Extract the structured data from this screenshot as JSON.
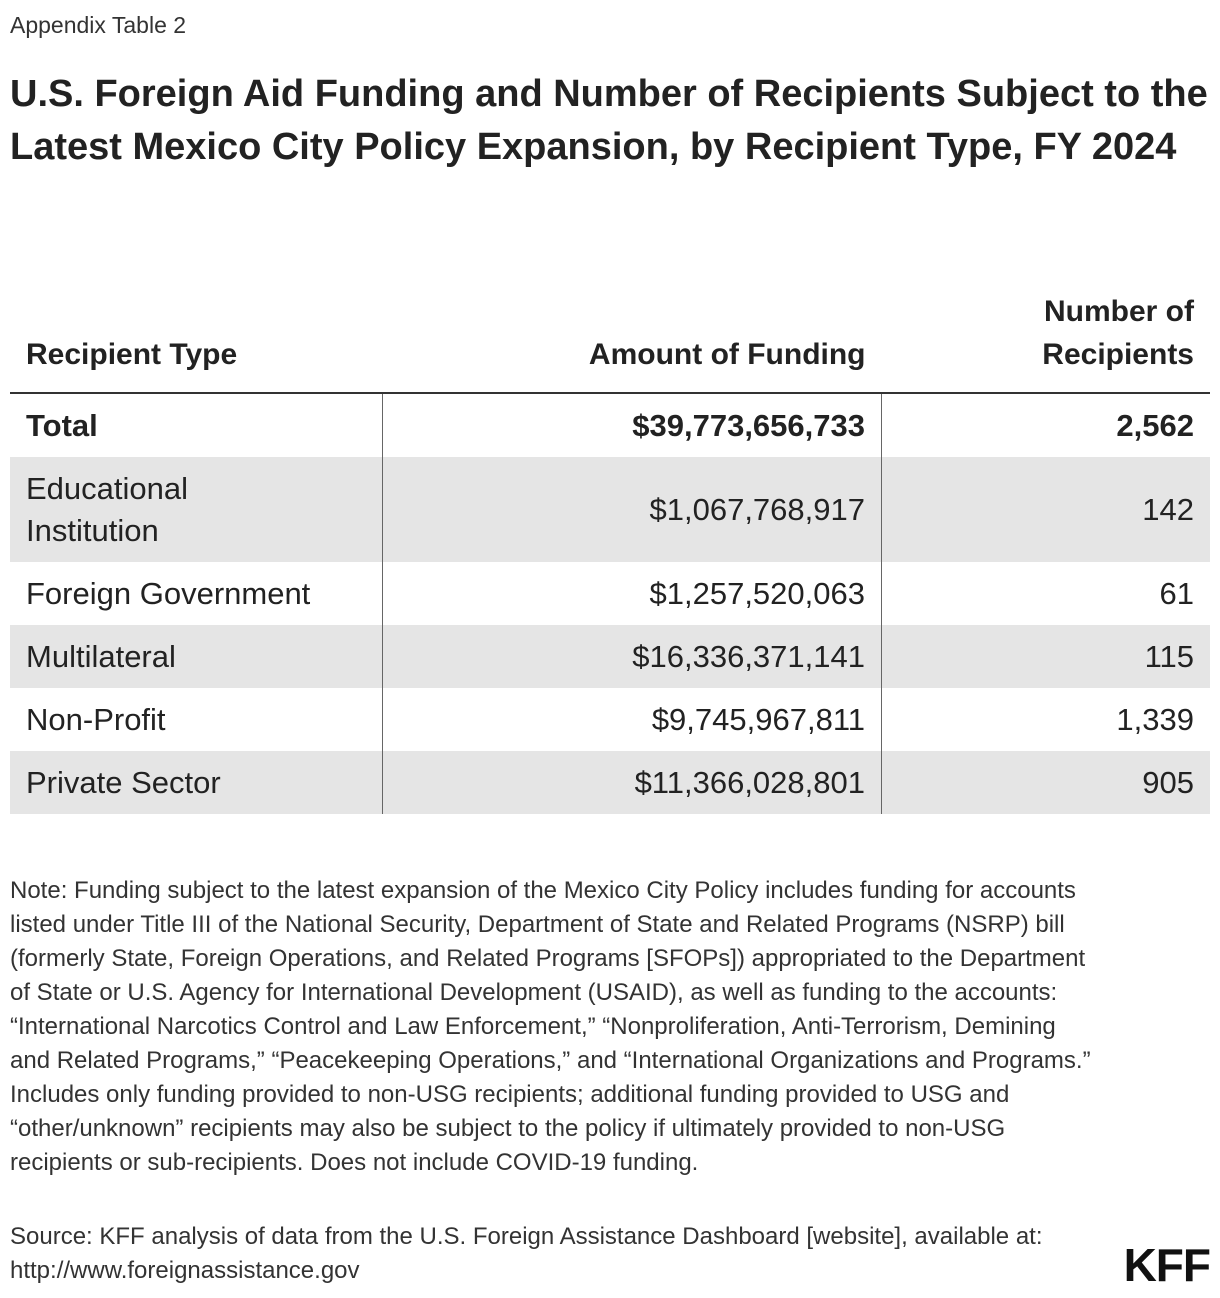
{
  "header": {
    "kicker": "Appendix Table 2",
    "title": "U.S. Foreign Aid Funding and Number of Recipients Subject to the Latest Mexico City Policy Expansion, by Recipient Type, FY 2024"
  },
  "table": {
    "columns": {
      "type": "Recipient Type",
      "funding": "Amount of Funding",
      "recipients_line1": "Number of",
      "recipients_line2": "Recipients"
    },
    "rows": [
      {
        "type": "Total",
        "funding": "$39,773,656,733",
        "recipients": "2,562"
      },
      {
        "type_line1": "Educational",
        "type_line2": "Institution",
        "funding": "$1,067,768,917",
        "recipients": "142"
      },
      {
        "type": "Foreign Government",
        "funding": "$1,257,520,063",
        "recipients": "61"
      },
      {
        "type": "Multilateral",
        "funding": "$16,336,371,141",
        "recipients": "115"
      },
      {
        "type": "Non-Profit",
        "funding": "$9,745,967,811",
        "recipients": "1,339"
      },
      {
        "type": "Private Sector",
        "funding": "$11,366,028,801",
        "recipients": "905"
      }
    ]
  },
  "footer": {
    "note": "Note: Funding subject to the latest expansion of the Mexico City Policy includes funding for accounts listed under Title III of the National Security, Department of State and Related Programs (NSRP) bill (formerly State, Foreign Operations, and Related Programs [SFOPs]) appropriated to the Department of State or U.S. Agency for International Development (USAID), as well as funding to the accounts: “International Narcotics Control and Law Enforcement,” “Nonproliferation, Anti-Terrorism, Demining and Related Programs,” “Peacekeeping Operations,” and “International Organizations and Programs.” Includes only funding provided to non-USG recipients; additional funding provided to USG and “other/unknown” recipients may also be subject to the policy if ultimately provided to non-USG recipients or sub-recipients. Does not include COVID-19 funding.",
    "source": "Source: KFF analysis of data from the U.S. Foreign Assistance Dashboard [website], available at: http://www.foreignassistance.gov",
    "logo": "KFF"
  }
}
